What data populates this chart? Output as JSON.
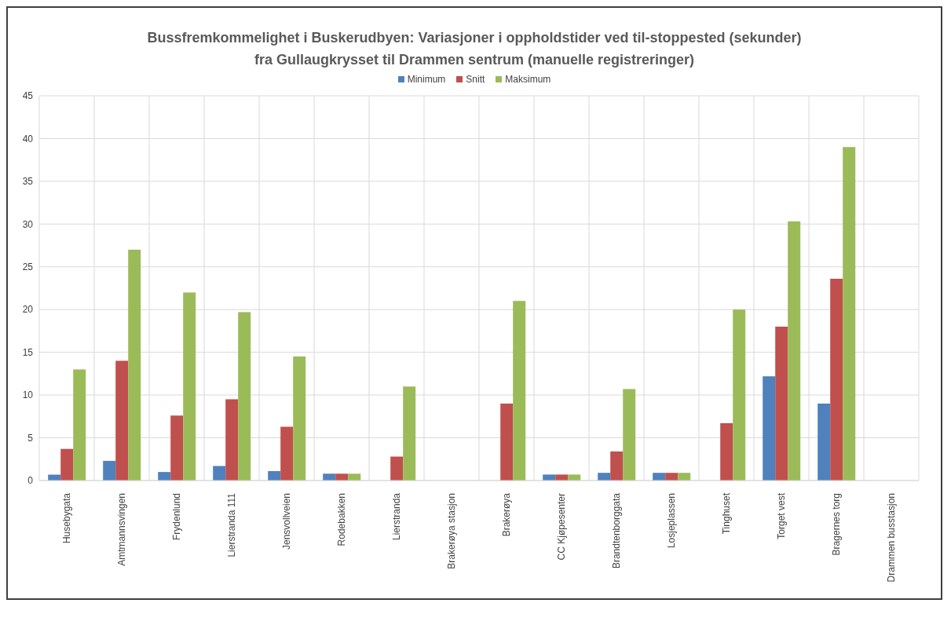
{
  "chart_data": {
    "type": "bar",
    "title": "Bussfremkommelighet i Buskerudbyen: Variasjoner i oppholdstider ved til-stoppested (sekunder)",
    "subtitle": "fra Gullaugkrysset til Drammen sentrum (manuelle registreringer)",
    "categories": [
      "Husebygata",
      "Amtmannsvingen",
      "Frydenlund",
      "Lierstranda 111",
      "Jensvollveien",
      "Rodebakken",
      "Lierstranda",
      "Brakerøya stasjon",
      "Brakerøya",
      "CC Kjøpesenter",
      "Brandtenborggata",
      "Losjeplassen",
      "Tinghuset",
      "Torget vest",
      "Bragernes torg",
      "Drammen busstasjon"
    ],
    "series": [
      {
        "name": "Minimum",
        "color": "#4f81bd",
        "values": [
          0.7,
          2.3,
          1.0,
          1.7,
          1.1,
          0.8,
          null,
          null,
          null,
          0.7,
          0.9,
          0.9,
          null,
          12.2,
          9.0,
          null
        ]
      },
      {
        "name": "Snitt",
        "color": "#c0504d",
        "values": [
          3.7,
          14,
          7.6,
          9.5,
          6.3,
          0.8,
          2.8,
          null,
          9.0,
          0.7,
          3.4,
          0.9,
          6.7,
          18,
          23.6,
          null
        ]
      },
      {
        "name": "Maksimum",
        "color": "#9bbb59",
        "values": [
          13,
          27,
          22,
          19.7,
          14.5,
          0.8,
          11,
          null,
          21,
          0.7,
          10.7,
          0.9,
          20,
          30.3,
          39,
          null
        ]
      }
    ],
    "ylim": [
      0,
      45
    ],
    "yticks": [
      0,
      5,
      10,
      15,
      20,
      25,
      30,
      35,
      40,
      45
    ],
    "grid": true,
    "legend": "top"
  }
}
